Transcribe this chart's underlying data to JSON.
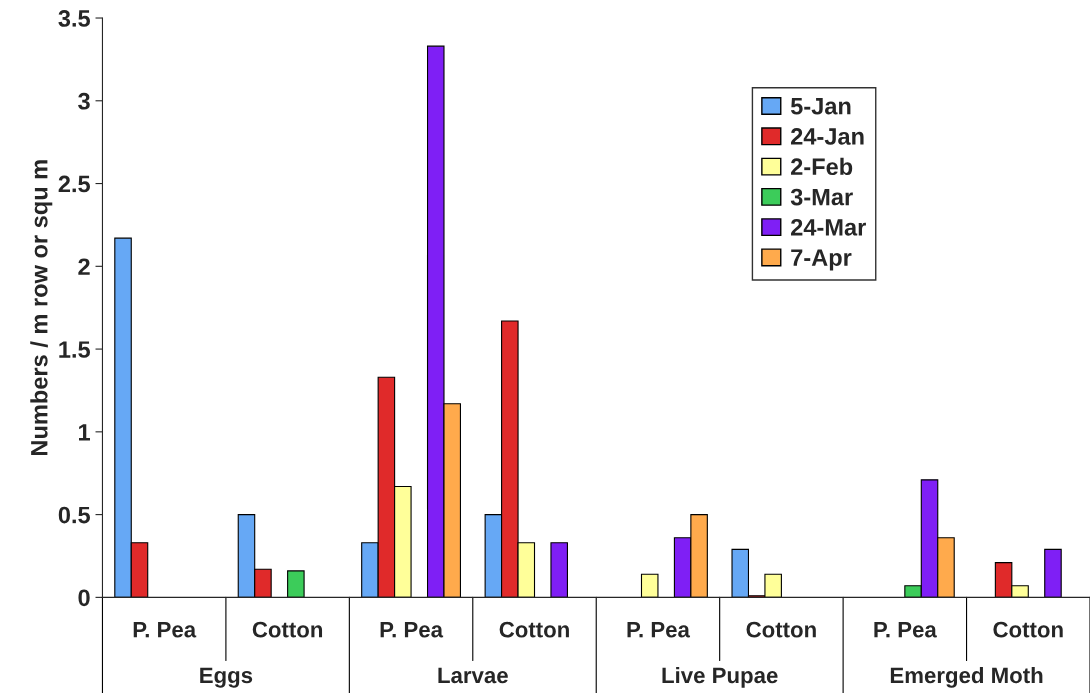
{
  "chart_data": {
    "type": "bar",
    "ylabel": "Numbers / m row or squ m",
    "categories": [
      "P. Pea",
      "Cotton",
      "P. Pea",
      "Cotton",
      "P. Pea",
      "Cotton",
      "P. Pea",
      "Cotton"
    ],
    "annotations": [
      "Eggs",
      "Larvae",
      "Live Pupae",
      "Emerged Moth"
    ],
    "series": [
      {
        "name": "5-Jan",
        "color": "#66a8f5",
        "values": [
          2.17,
          0.5,
          0.33,
          0.5,
          null,
          0.29,
          null,
          null
        ]
      },
      {
        "name": "24-Jan",
        "color": "#e02a2a",
        "values": [
          0.33,
          0.17,
          1.33,
          1.67,
          null,
          0.01,
          null,
          0.21
        ]
      },
      {
        "name": "2-Feb",
        "color": "#ffff99",
        "values": [
          null,
          null,
          0.67,
          0.33,
          0.14,
          0.14,
          null,
          0.07
        ]
      },
      {
        "name": "3-Mar",
        "color": "#3ccc5a",
        "values": [
          null,
          0.16,
          null,
          null,
          null,
          null,
          0.07,
          null
        ]
      },
      {
        "name": "24-Mar",
        "color": "#7f1ff5",
        "values": [
          null,
          null,
          3.33,
          0.33,
          0.36,
          null,
          0.71,
          0.29
        ]
      },
      {
        "name": "7-Apr",
        "color": "#ffaa4c",
        "values": [
          null,
          null,
          1.17,
          null,
          0.5,
          null,
          0.36,
          null
        ]
      }
    ],
    "ylim": [
      0,
      3.5
    ],
    "yticks": [
      0,
      0.5,
      1,
      1.5,
      2,
      2.5,
      3,
      3.5
    ],
    "legend": "top right",
    "grid": false
  }
}
